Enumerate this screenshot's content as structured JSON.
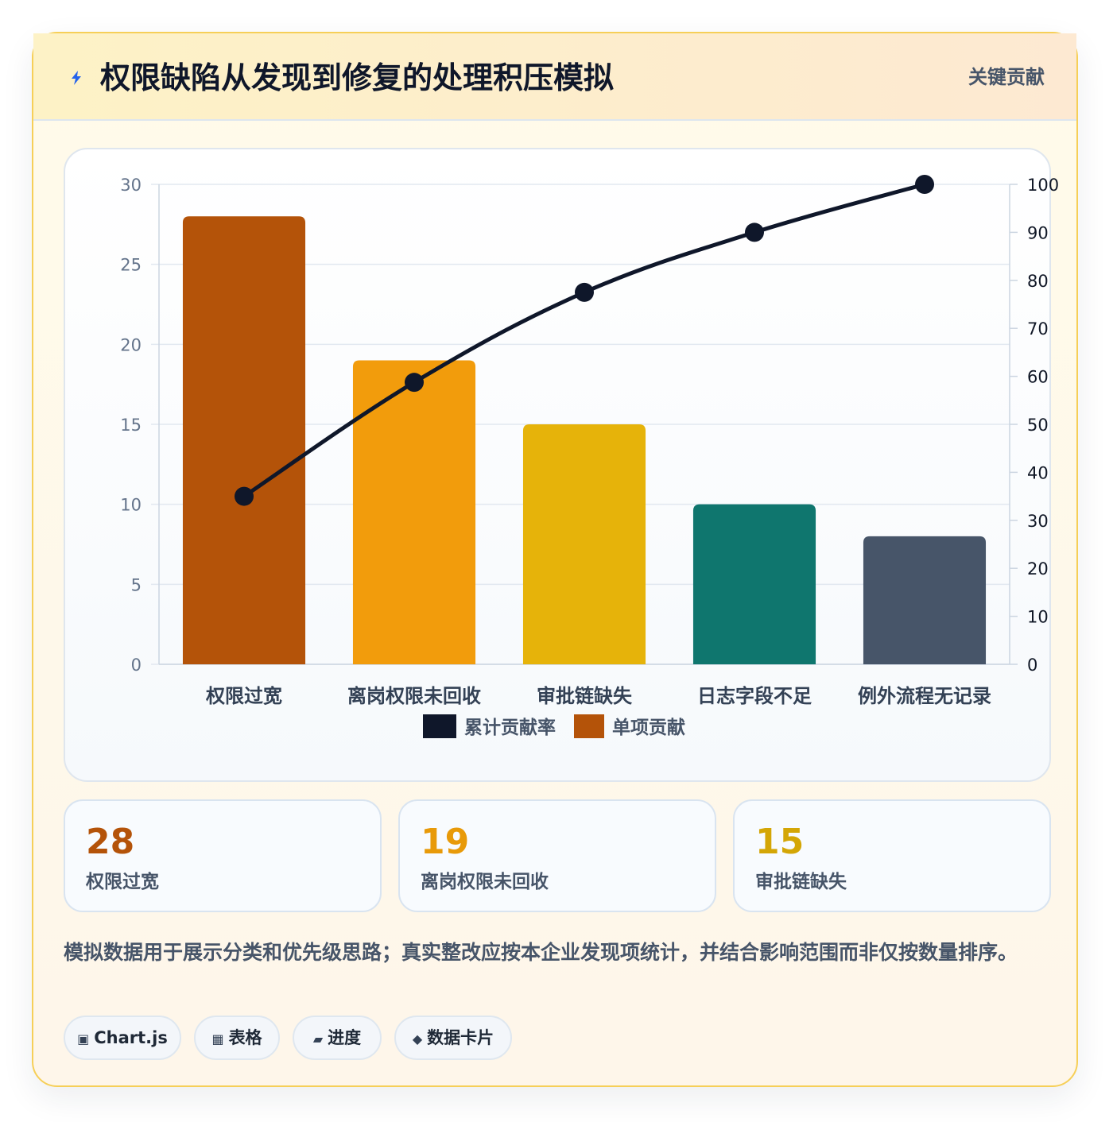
{
  "header": {
    "title": "权限缺陷从发现到修复的处理积压模拟",
    "tag": "关键贡献",
    "icon": "lightning-bolt-icon"
  },
  "chart_data": {
    "type": "bar",
    "categories": [
      "权限过宽",
      "离岗权限未回收",
      "审批链缺失",
      "日志字段不足",
      "例外流程无记录"
    ],
    "series": [
      {
        "name": "单项贡献",
        "type": "bar",
        "axis": "left",
        "values": [
          28,
          19,
          15,
          10,
          8
        ],
        "colors": [
          "#b45309",
          "#f29c0c",
          "#e6b30a",
          "#0f766e",
          "#475569"
        ]
      },
      {
        "name": "累计贡献率",
        "type": "line",
        "axis": "right",
        "values": [
          35,
          58.75,
          77.5,
          90,
          100
        ],
        "color": "#0f172a"
      }
    ],
    "y_left": {
      "ylim": [
        0,
        30
      ],
      "ticks": [
        0,
        5,
        10,
        15,
        20,
        25,
        30
      ]
    },
    "y_right": {
      "ylim": [
        0,
        100
      ],
      "ticks": [
        0,
        10,
        20,
        30,
        40,
        50,
        60,
        70,
        80,
        90,
        100
      ]
    },
    "legend": [
      {
        "label": "累计贡献率",
        "color": "#0f172a"
      },
      {
        "label": "单项贡献",
        "color": "#b45309"
      }
    ],
    "legend_position": "bottom",
    "grid": true
  },
  "stats": [
    {
      "value": "28",
      "label": "权限过宽",
      "color": "#b45309"
    },
    {
      "value": "19",
      "label": "离岗权限未回收",
      "color": "#e89a09"
    },
    {
      "value": "15",
      "label": "审批链缺失",
      "color": "#d4a606"
    }
  ],
  "note": "模拟数据用于展示分类和优先级思路；真实整改应按本企业发现项统计，并结合影响范围而非仅按数量排序。",
  "chips": [
    {
      "icon": "▣",
      "label": "Chart.js"
    },
    {
      "icon": "▦",
      "label": "表格"
    },
    {
      "icon": "▰",
      "label": "进度"
    },
    {
      "icon": "◆",
      "label": "数据卡片"
    }
  ]
}
